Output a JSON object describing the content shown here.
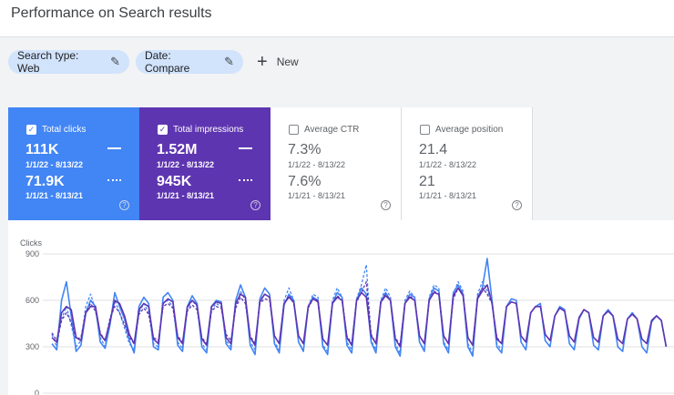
{
  "page": {
    "title": "Performance on Search results"
  },
  "filters": {
    "chips": [
      {
        "label": "Search type: Web",
        "icon": "pencil-icon"
      },
      {
        "label": "Date: Compare",
        "icon": "pencil-icon"
      }
    ],
    "new_label": "New",
    "new_icon": "plus-icon"
  },
  "cards": [
    {
      "label": "Total clicks",
      "checked": true,
      "value_current": "111K",
      "range_current": "1/1/22 - 8/13/22",
      "value_previous": "71.9K",
      "range_previous": "1/1/21 - 8/13/21",
      "color": "#4285f4"
    },
    {
      "label": "Total impressions",
      "checked": true,
      "value_current": "1.52M",
      "range_current": "1/1/22 - 8/13/22",
      "value_previous": "945K",
      "range_previous": "1/1/21 - 8/13/21",
      "color": "#5e35b1"
    },
    {
      "label": "Average CTR",
      "checked": false,
      "value_current": "7.3%",
      "range_current": "1/1/22 - 8/13/22",
      "value_previous": "7.6%",
      "range_previous": "1/1/21 - 8/13/21",
      "color": "#ffffff"
    },
    {
      "label": "Average position",
      "checked": false,
      "value_current": "21.4",
      "range_current": "1/1/22 - 8/13/22",
      "value_previous": "21",
      "range_previous": "1/1/21 - 8/13/21",
      "color": "#ffffff"
    }
  ],
  "chart_data": {
    "type": "line",
    "ylabel": "Clicks",
    "yticks": [
      "900",
      "600",
      "300",
      "0"
    ],
    "ylim": [
      0,
      900
    ],
    "grid": true,
    "series": [
      {
        "style": "solid",
        "color": "#4285f4",
        "values": [
          320,
          280,
          600,
          720,
          500,
          270,
          310,
          520,
          600,
          560,
          330,
          290,
          440,
          650,
          560,
          480,
          340,
          260,
          560,
          620,
          580,
          300,
          280,
          620,
          650,
          600,
          310,
          270,
          560,
          630,
          580,
          300,
          260,
          560,
          600,
          590,
          320,
          280,
          600,
          700,
          620,
          310,
          250,
          610,
          680,
          640,
          320,
          260,
          570,
          640,
          600,
          330,
          270,
          560,
          620,
          600,
          300,
          250,
          580,
          650,
          620,
          310,
          260,
          600,
          680,
          640,
          330,
          260,
          590,
          650,
          600,
          300,
          240,
          580,
          640,
          620,
          330,
          270,
          610,
          680,
          660,
          320,
          260,
          650,
          700,
          640,
          300,
          240,
          620,
          680,
          870,
          600,
          300,
          260,
          560,
          610,
          600,
          330,
          280,
          520,
          560,
          580,
          340,
          300,
          500,
          560,
          540,
          320,
          280,
          480,
          540,
          520,
          310,
          280,
          500,
          540,
          500,
          300,
          270,
          480,
          520,
          480,
          300,
          260,
          460,
          500,
          470,
          300
        ]
      },
      {
        "style": "dashed",
        "color": "#4285f4",
        "values": [
          380,
          300,
          480,
          560,
          440,
          300,
          340,
          560,
          640,
          540,
          360,
          300,
          480,
          600,
          520,
          420,
          320,
          280,
          520,
          580,
          520,
          320,
          300,
          580,
          600,
          560,
          330,
          290,
          540,
          600,
          560,
          320,
          280,
          540,
          580,
          560,
          340,
          300,
          560,
          660,
          600,
          330,
          280,
          600,
          640,
          620,
          330,
          280,
          600,
          680,
          600,
          330,
          280,
          560,
          640,
          620,
          310,
          270,
          600,
          680,
          620,
          330,
          280,
          610,
          700,
          830,
          340,
          280,
          600,
          680,
          620,
          320,
          260,
          600,
          660,
          620,
          330,
          280,
          620,
          700,
          680,
          330,
          280,
          640,
          720,
          660,
          320,
          260,
          640,
          720,
          660,
          600,
          320,
          280
        ]
      },
      {
        "style": "solid",
        "color": "#5e35b1",
        "values": [
          360,
          330,
          520,
          560,
          540,
          360,
          340,
          520,
          560,
          560,
          380,
          340,
          460,
          600,
          580,
          500,
          380,
          320,
          540,
          580,
          560,
          350,
          320,
          580,
          610,
          590,
          360,
          320,
          560,
          600,
          570,
          350,
          310,
          560,
          590,
          580,
          360,
          320,
          580,
          640,
          620,
          360,
          310,
          590,
          640,
          620,
          370,
          320,
          580,
          620,
          590,
          370,
          320,
          560,
          610,
          590,
          350,
          310,
          580,
          620,
          600,
          360,
          310,
          600,
          650,
          620,
          370,
          320,
          590,
          630,
          600,
          350,
          300,
          580,
          620,
          600,
          370,
          320,
          600,
          650,
          640,
          370,
          320,
          630,
          680,
          630,
          360,
          310,
          610,
          660,
          700,
          580,
          350,
          320,
          560,
          590,
          580,
          370,
          330,
          520,
          560,
          560,
          380,
          340,
          500,
          550,
          530,
          370,
          330,
          490,
          540,
          520,
          360,
          330,
          500,
          530,
          500,
          350,
          320,
          480,
          510,
          480,
          350,
          320,
          470,
          500,
          470,
          300
        ]
      },
      {
        "style": "dashed",
        "color": "#5e35b1",
        "values": [
          390,
          340,
          470,
          520,
          460,
          350,
          360,
          520,
          580,
          530,
          390,
          340,
          480,
          560,
          520,
          440,
          360,
          320,
          510,
          550,
          510,
          360,
          340,
          560,
          580,
          550,
          370,
          330,
          530,
          570,
          540,
          360,
          320,
          530,
          560,
          550,
          380,
          340,
          550,
          620,
          580,
          370,
          320,
          580,
          610,
          600,
          370,
          320,
          580,
          630,
          580,
          370,
          320,
          550,
          610,
          600,
          350,
          310,
          580,
          630,
          600,
          370,
          320,
          590,
          650,
          720,
          380,
          320,
          580,
          640,
          600,
          360,
          310,
          580,
          630,
          600,
          370,
          320,
          600,
          660,
          640,
          370,
          320,
          610,
          680,
          640,
          360,
          310,
          620,
          680,
          640,
          580,
          360,
          320
        ]
      }
    ]
  }
}
